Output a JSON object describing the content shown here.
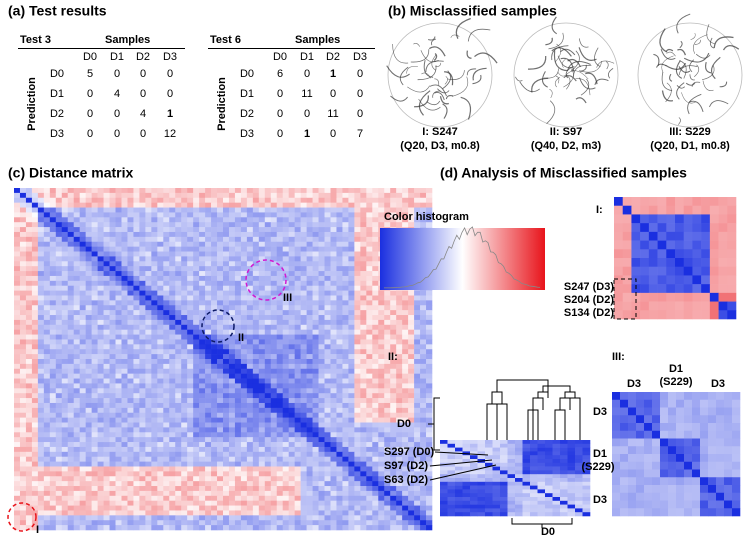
{
  "panel_a": {
    "title": "(a) Test results",
    "tables": [
      {
        "name": "Test 3",
        "columns_title": "Samples",
        "rows_title": "Prediction",
        "columns": [
          "D0",
          "D1",
          "D2",
          "D3"
        ],
        "rows": [
          {
            "label": "D0",
            "cells": [
              5,
              0,
              0,
              0
            ]
          },
          {
            "label": "D1",
            "cells": [
              0,
              4,
              0,
              0
            ]
          },
          {
            "label": "D2",
            "cells": [
              0,
              0,
              4,
              {
                "value": 1,
                "color": "#e8141b"
              }
            ]
          },
          {
            "label": "D3",
            "cells": [
              0,
              0,
              0,
              12
            ]
          }
        ]
      },
      {
        "name": "Test 6",
        "columns_title": "Samples",
        "rows_title": "Prediction",
        "columns": [
          "D0",
          "D1",
          "D2",
          "D3"
        ],
        "rows": [
          {
            "label": "D0",
            "cells": [
              6,
              0,
              {
                "value": 1,
                "color": "#1a2fd0"
              },
              0
            ]
          },
          {
            "label": "D1",
            "cells": [
              0,
              11,
              0,
              0
            ]
          },
          {
            "label": "D2",
            "cells": [
              0,
              0,
              11,
              0
            ]
          },
          {
            "label": "D3",
            "cells": [
              0,
              {
                "value": 1,
                "color": "#d21ad2"
              },
              0,
              7
            ]
          }
        ]
      }
    ]
  },
  "panel_b": {
    "title": "(b) Misclassified samples",
    "samples": [
      {
        "label": "I: S247",
        "detail": "(Q20, D3, m0.8)",
        "color": "#e8141b"
      },
      {
        "label": "II: S97",
        "detail": "(Q40, D2, m3)",
        "color": "#1a2fd0"
      },
      {
        "label": "III: S229",
        "detail": "(Q20, D1, m0.8)",
        "color": "#d21ad2"
      }
    ]
  },
  "panel_c": {
    "title": "(c) Distance matrix",
    "markers": [
      {
        "label": "I",
        "circle_color": "#e8141b"
      },
      {
        "label": "II",
        "circle_color": "#0d1a66"
      },
      {
        "label": "III",
        "circle_color": "#d21ad2"
      }
    ]
  },
  "panel_d": {
    "title": "(d) Analysis of Misclassified samples",
    "histogram_label": "Color histogram",
    "part_I": {
      "label": "I:",
      "samples": [
        {
          "text": "S247 (D3)",
          "color": "#e8141b"
        },
        {
          "text": "S204 (D2)"
        },
        {
          "text": "S134 (D2)"
        }
      ]
    },
    "part_II": {
      "label": "II:",
      "group_left": "D0",
      "group_bottom": "D0",
      "samples": [
        {
          "text": "S297 (D0)"
        },
        {
          "text": "S97 (D2)",
          "color": "#1a2fd0"
        },
        {
          "text": "S63 (D2)"
        }
      ]
    },
    "part_III": {
      "label": "III:",
      "top_labels": [
        {
          "text": "D3"
        },
        {
          "text": "D1",
          "color": "#d21ad2"
        },
        {
          "text": "(S229)",
          "color": "#d21ad2"
        },
        {
          "text": "D3"
        }
      ],
      "left_labels": [
        {
          "text": "D3"
        },
        {
          "text": "D1",
          "color": "#d21ad2"
        },
        {
          "text": "(S229)",
          "color": "#d21ad2"
        },
        {
          "text": "D3"
        }
      ]
    }
  }
}
